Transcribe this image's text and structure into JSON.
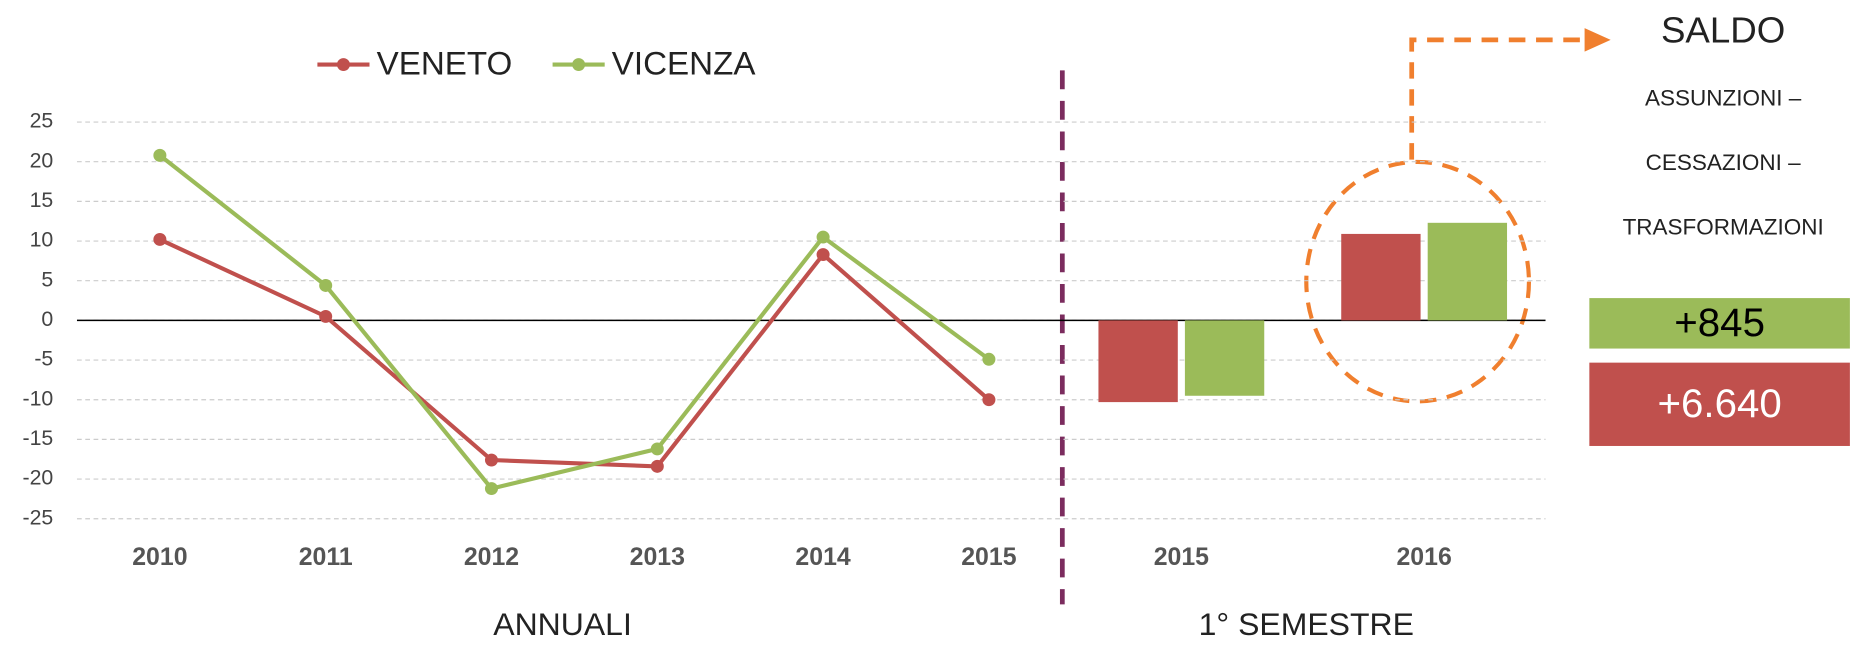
{
  "chart_data": [
    {
      "type": "line",
      "categories": [
        "2010",
        "2011",
        "2012",
        "2013",
        "2014",
        "2015"
      ],
      "series": [
        {
          "name": "VENETO",
          "color": "#c0504d",
          "values": [
            10.2,
            0.5,
            -17.6,
            -18.4,
            8.3,
            -10.0
          ]
        },
        {
          "name": "VICENZA",
          "color": "#9bbb59",
          "values": [
            20.8,
            4.4,
            -21.2,
            -16.2,
            10.5,
            -4.9
          ]
        }
      ],
      "ylim": [
        -25,
        25
      ],
      "yticks": [
        25,
        20,
        15,
        10,
        5,
        0,
        -5,
        -10,
        -15,
        -20,
        -25
      ],
      "grid": true,
      "xlabel": "ANNUALI"
    },
    {
      "type": "bar",
      "categories": [
        "2015",
        "2016"
      ],
      "series": [
        {
          "color": "#c0504d",
          "values": [
            -10.3,
            10.9
          ]
        },
        {
          "color": "#9bbb59",
          "values": [
            -9.5,
            12.3
          ]
        }
      ],
      "ylim": [
        -25,
        25
      ],
      "xlabel": "1° SEMESTRE"
    }
  ],
  "saldo": {
    "title": "SALDO",
    "lines": [
      "ASSUNZIONI –",
      "CESSAZIONI –",
      "TRASFORMAZIONI"
    ],
    "boxes": [
      {
        "text": "+845",
        "color": "#9bbb59"
      },
      {
        "text": "+6.640",
        "color": "#c0504d"
      }
    ]
  }
}
